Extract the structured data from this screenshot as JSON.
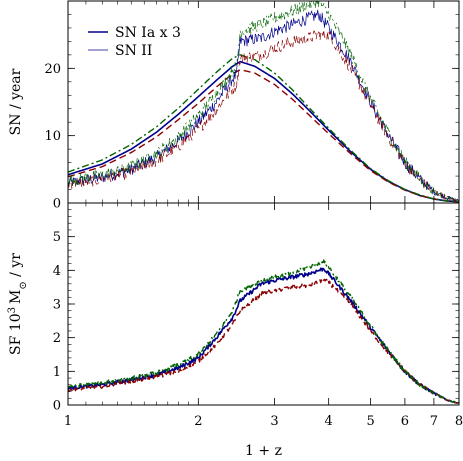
{
  "chart_data": [
    {
      "type": "line",
      "panel": "top",
      "ylabel": "SN / year",
      "xlabel": "",
      "xscale": "log",
      "xlim": [
        1,
        8
      ],
      "ylim": [
        0,
        30
      ],
      "x_ticks": [
        1,
        2,
        3,
        4,
        5,
        6,
        7,
        8
      ],
      "y_ticks": [
        0,
        10,
        20
      ],
      "legend": {
        "placement": "top-left",
        "entries": [
          "SN Ia x 3",
          "SN II"
        ]
      },
      "series": [
        {
          "name": "SN Ia x 3",
          "color": "#00008b",
          "dash": "solid",
          "width": 1.6,
          "x": [
            1,
            1.2,
            1.4,
            1.6,
            1.8,
            2.0,
            2.2,
            2.4,
            2.5,
            2.7,
            3.0,
            3.3,
            3.6,
            4.0,
            4.5,
            5.0,
            5.5,
            6.0,
            6.5,
            7.0,
            7.5,
            8.0
          ],
          "y": [
            4.2,
            5.8,
            8.0,
            10.5,
            13.2,
            15.8,
            18.2,
            20.3,
            21.0,
            20.3,
            18.5,
            16.2,
            13.8,
            10.8,
            7.6,
            5.0,
            3.2,
            2.0,
            1.1,
            0.6,
            0.3,
            0.2
          ]
        },
        {
          "name": "",
          "color": "#8b0000",
          "dash": "dashed",
          "width": 1.4,
          "x": [
            1,
            1.2,
            1.4,
            1.6,
            1.8,
            2.0,
            2.2,
            2.4,
            2.5,
            2.7,
            3.0,
            3.3,
            3.6,
            4.0,
            4.5,
            5.0,
            5.5,
            6.0,
            6.5,
            7.0,
            7.5,
            8.0
          ],
          "y": [
            3.9,
            5.4,
            7.5,
            9.8,
            12.4,
            14.8,
            17.2,
            19.2,
            19.8,
            19.3,
            17.6,
            15.4,
            13.1,
            10.3,
            7.3,
            4.8,
            3.1,
            1.9,
            1.1,
            0.6,
            0.3,
            0.2
          ]
        },
        {
          "name": "",
          "color": "#006400",
          "dash": "dashdot",
          "width": 1.4,
          "x": [
            1,
            1.2,
            1.4,
            1.6,
            1.8,
            2.0,
            2.2,
            2.4,
            2.5,
            2.7,
            3.0,
            3.3,
            3.6,
            4.0,
            4.5,
            5.0,
            5.5,
            6.0,
            6.5,
            7.0,
            7.5,
            8.0
          ],
          "y": [
            4.6,
            6.4,
            8.7,
            11.3,
            14.1,
            16.9,
            19.4,
            21.5,
            22.0,
            21.3,
            19.3,
            16.8,
            14.2,
            11.1,
            7.8,
            5.1,
            3.3,
            2.0,
            1.2,
            0.6,
            0.3,
            0.2
          ]
        },
        {
          "name": "SN II",
          "color": "#00008b",
          "dash": "solid",
          "width": 0.7,
          "noise": 0.9,
          "x": [
            1,
            1.2,
            1.4,
            1.6,
            1.8,
            2.0,
            2.2,
            2.4,
            2.45,
            2.5,
            2.8,
            3.0,
            3.3,
            3.6,
            3.8,
            4.0,
            4.3,
            4.5,
            5.0,
            5.5,
            6.0,
            6.5,
            7.0,
            7.5,
            8.0
          ],
          "y": [
            3.0,
            3.8,
            5.0,
            6.8,
            9.2,
            12.0,
            15.0,
            18.5,
            19.0,
            24.0,
            24.5,
            25.5,
            26.5,
            27.5,
            28.0,
            26.0,
            23.0,
            21.0,
            15.0,
            10.0,
            6.0,
            3.5,
            1.7,
            0.8,
            0.3
          ]
        },
        {
          "name": "",
          "color": "#8b0000",
          "dash": "dashed",
          "width": 0.7,
          "noise": 0.9,
          "x": [
            1,
            1.2,
            1.4,
            1.6,
            1.8,
            2.0,
            2.2,
            2.4,
            2.45,
            2.5,
            2.8,
            3.0,
            3.3,
            3.6,
            3.8,
            4.0,
            4.3,
            4.5,
            5.0,
            5.5,
            6.0,
            6.5,
            7.0,
            7.5,
            8.0
          ],
          "y": [
            2.8,
            3.5,
            4.6,
            6.2,
            8.4,
            11.0,
            13.8,
            17.0,
            17.5,
            21.5,
            22.0,
            23.0,
            24.0,
            24.5,
            25.0,
            25.0,
            22.0,
            20.0,
            14.5,
            9.8,
            5.9,
            3.4,
            1.7,
            0.8,
            0.3
          ]
        },
        {
          "name": "",
          "color": "#006400",
          "dash": "dashdot",
          "width": 0.7,
          "noise": 0.9,
          "x": [
            1,
            1.2,
            1.4,
            1.6,
            1.8,
            2.0,
            2.2,
            2.4,
            2.45,
            2.5,
            2.8,
            3.0,
            3.3,
            3.6,
            3.8,
            4.0,
            4.3,
            4.5,
            5.0,
            5.5,
            6.0,
            6.5,
            7.0,
            7.5,
            8.0
          ],
          "y": [
            3.3,
            4.1,
            5.4,
            7.3,
            9.9,
            13.0,
            16.2,
            19.8,
            20.2,
            25.5,
            26.5,
            27.5,
            28.5,
            29.5,
            30.0,
            28.0,
            24.5,
            22.0,
            15.5,
            10.3,
            6.1,
            3.5,
            1.7,
            0.8,
            0.3
          ]
        }
      ]
    },
    {
      "type": "line",
      "panel": "bottom",
      "ylabel": "SF 10³ M⊙ / yr",
      "ylabel_parts": {
        "prefix": "SF 10",
        "sup": "3",
        "mass": "M",
        "sub": "⊙",
        "suffix": " / yr"
      },
      "xlabel": "1 + z",
      "xscale": "log",
      "xlim": [
        1,
        8
      ],
      "ylim": [
        0,
        6
      ],
      "x_ticks": [
        1,
        2,
        3,
        4,
        5,
        6,
        7,
        8
      ],
      "y_ticks": [
        0,
        1,
        2,
        3,
        4,
        5
      ],
      "series": [
        {
          "name": "",
          "color": "#00008b",
          "dash": "solid",
          "width": 1.6,
          "noise": 0.06,
          "x": [
            1,
            1.2,
            1.4,
            1.6,
            1.8,
            2.0,
            2.2,
            2.4,
            2.5,
            2.8,
            3.0,
            3.3,
            3.6,
            3.9,
            4.0,
            4.5,
            5.0,
            5.5,
            6.0,
            6.5,
            7.0,
            7.5,
            8.0
          ],
          "y": [
            0.5,
            0.6,
            0.75,
            0.9,
            1.1,
            1.4,
            2.0,
            2.6,
            3.1,
            3.6,
            3.7,
            3.8,
            3.9,
            4.05,
            3.9,
            3.1,
            2.3,
            1.6,
            1.0,
            0.6,
            0.35,
            0.15,
            0.05
          ]
        },
        {
          "name": "",
          "color": "#8b0000",
          "dash": "dashed",
          "width": 1.4,
          "noise": 0.06,
          "x": [
            1,
            1.2,
            1.4,
            1.6,
            1.8,
            2.0,
            2.2,
            2.4,
            2.5,
            2.8,
            3.0,
            3.3,
            3.6,
            3.9,
            4.0,
            4.5,
            5.0,
            5.5,
            6.0,
            6.5,
            7.0,
            7.5,
            8.0
          ],
          "y": [
            0.45,
            0.55,
            0.7,
            0.85,
            1.0,
            1.3,
            1.8,
            2.4,
            2.8,
            3.3,
            3.4,
            3.5,
            3.55,
            3.7,
            3.65,
            3.0,
            2.2,
            1.55,
            1.0,
            0.6,
            0.35,
            0.15,
            0.05
          ]
        },
        {
          "name": "",
          "color": "#006400",
          "dash": "dashdot",
          "width": 1.4,
          "noise": 0.06,
          "x": [
            1,
            1.2,
            1.4,
            1.6,
            1.8,
            2.0,
            2.2,
            2.4,
            2.5,
            2.8,
            3.0,
            3.3,
            3.6,
            3.9,
            4.0,
            4.5,
            5.0,
            5.5,
            6.0,
            6.5,
            7.0,
            7.5,
            8.0
          ],
          "y": [
            0.55,
            0.65,
            0.8,
            0.95,
            1.2,
            1.5,
            2.1,
            2.8,
            3.4,
            3.7,
            3.8,
            3.9,
            4.1,
            4.25,
            4.1,
            3.2,
            2.35,
            1.6,
            1.0,
            0.6,
            0.35,
            0.15,
            0.05
          ]
        }
      ]
    }
  ]
}
